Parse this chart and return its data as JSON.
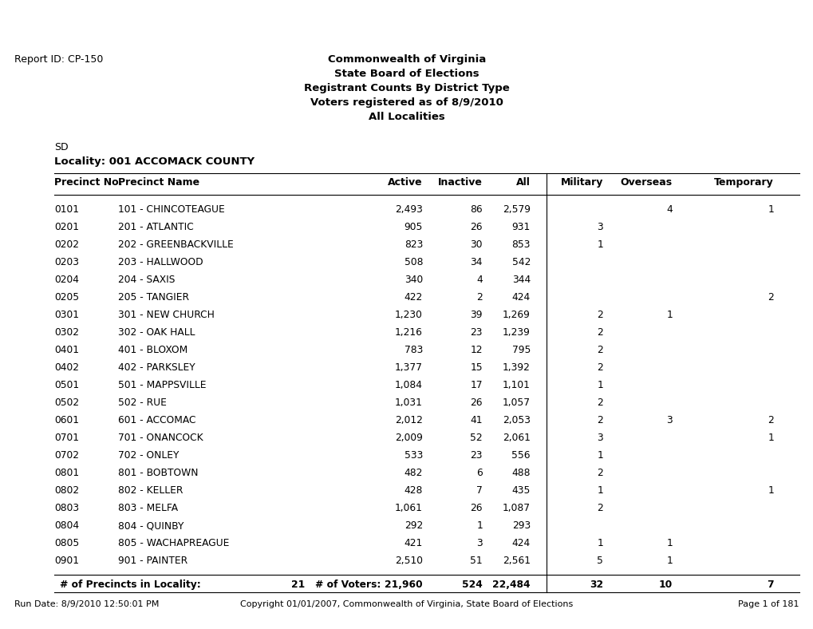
{
  "report_id": "Report ID: CP-150",
  "title_lines": [
    "Commonwealth of Virginia",
    "State Board of Elections",
    "Registrant Counts By District Type",
    "Voters registered as of 8/9/2010",
    "All Localities"
  ],
  "section_label": "SD",
  "locality_label": "Locality: 001 ACCOMACK COUNTY",
  "col_headers": [
    "Precinct No.",
    "Precinct Name",
    "Active",
    "Inactive",
    "All",
    "Military",
    "Overseas",
    "Temporary"
  ],
  "rows": [
    [
      "0101",
      "101 - CHINCOTEAGUE",
      "2,493",
      "86",
      "2,579",
      "",
      "4",
      "1"
    ],
    [
      "0201",
      "201 - ATLANTIC",
      "905",
      "26",
      "931",
      "3",
      "",
      ""
    ],
    [
      "0202",
      "202 - GREENBACKVILLE",
      "823",
      "30",
      "853",
      "1",
      "",
      ""
    ],
    [
      "0203",
      "203 - HALLWOOD",
      "508",
      "34",
      "542",
      "",
      "",
      ""
    ],
    [
      "0204",
      "204 - SAXIS",
      "340",
      "4",
      "344",
      "",
      "",
      ""
    ],
    [
      "0205",
      "205 - TANGIER",
      "422",
      "2",
      "424",
      "",
      "",
      "2"
    ],
    [
      "0301",
      "301 - NEW CHURCH",
      "1,230",
      "39",
      "1,269",
      "2",
      "1",
      ""
    ],
    [
      "0302",
      "302 - OAK HALL",
      "1,216",
      "23",
      "1,239",
      "2",
      "",
      ""
    ],
    [
      "0401",
      "401 - BLOXOM",
      "783",
      "12",
      "795",
      "2",
      "",
      ""
    ],
    [
      "0402",
      "402 - PARKSLEY",
      "1,377",
      "15",
      "1,392",
      "2",
      "",
      ""
    ],
    [
      "0501",
      "501 - MAPPSVILLE",
      "1,084",
      "17",
      "1,101",
      "1",
      "",
      ""
    ],
    [
      "0502",
      "502 - RUE",
      "1,031",
      "26",
      "1,057",
      "2",
      "",
      ""
    ],
    [
      "0601",
      "601 - ACCOMAC",
      "2,012",
      "41",
      "2,053",
      "2",
      "3",
      "2"
    ],
    [
      "0701",
      "701 - ONANCOCK",
      "2,009",
      "52",
      "2,061",
      "3",
      "",
      "1"
    ],
    [
      "0702",
      "702 - ONLEY",
      "533",
      "23",
      "556",
      "1",
      "",
      ""
    ],
    [
      "0801",
      "801 - BOBTOWN",
      "482",
      "6",
      "488",
      "2",
      "",
      ""
    ],
    [
      "0802",
      "802 - KELLER",
      "428",
      "7",
      "435",
      "1",
      "",
      "1"
    ],
    [
      "0803",
      "803 - MELFA",
      "1,061",
      "26",
      "1,087",
      "2",
      "",
      ""
    ],
    [
      "0804",
      "804 - QUINBY",
      "292",
      "1",
      "293",
      "",
      "",
      ""
    ],
    [
      "0805",
      "805 - WACHAPREAGUE",
      "421",
      "3",
      "424",
      "1",
      "1",
      ""
    ],
    [
      "0901",
      "901 - PAINTER",
      "2,510",
      "51",
      "2,561",
      "5",
      "1",
      ""
    ]
  ],
  "footer_precincts_label": "# of Precincts in Locality:",
  "footer_precincts_count": "21",
  "footer_voters_label": "# of Voters:",
  "footer_totals": [
    "21,960",
    "524",
    "22,484",
    "32",
    "10",
    "7"
  ],
  "run_date": "Run Date: 8/9/2010 12:50:01 PM",
  "copyright": "Copyright 01/01/2007, Commonwealth of Virginia, State Board of Elections",
  "page": "Page 1 of 181",
  "bg_color": "#ffffff",
  "text_color": "#000000"
}
